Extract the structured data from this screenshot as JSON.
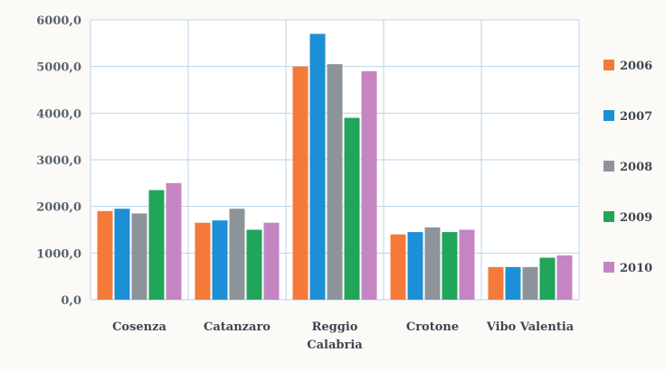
{
  "chart_data": {
    "type": "bar",
    "title": "",
    "xlabel": "",
    "ylabel": "",
    "categories": [
      "Cosenza",
      "Catanzaro",
      "Reggio Calabria",
      "Crotone",
      "Vibo Valentia"
    ],
    "category_lines": [
      [
        "Cosenza"
      ],
      [
        "Catanzaro"
      ],
      [
        "Reggio",
        "Calabria"
      ],
      [
        "Crotone"
      ],
      [
        "Vibo Valentia"
      ]
    ],
    "yticks": [
      "0,0",
      "1000,0",
      "2000,0",
      "3000,0",
      "4000,0",
      "5000,0",
      "6000,0"
    ],
    "ylim": [
      0,
      6000
    ],
    "grid": true,
    "legend_position": "right",
    "series": [
      {
        "name": "2006",
        "color": "#f47a3a",
        "values": [
          1900,
          1650,
          5000,
          1400,
          700
        ]
      },
      {
        "name": "2007",
        "color": "#1d8fd6",
        "values": [
          1950,
          1700,
          5700,
          1450,
          700
        ]
      },
      {
        "name": "2008",
        "color": "#8d9499",
        "values": [
          1850,
          1950,
          5050,
          1550,
          700
        ]
      },
      {
        "name": "2009",
        "color": "#21a55b",
        "values": [
          2350,
          1500,
          3900,
          1450,
          900
        ]
      },
      {
        "name": "2010",
        "color": "#c585c3",
        "values": [
          2500,
          1650,
          4900,
          1500,
          950
        ]
      }
    ]
  }
}
